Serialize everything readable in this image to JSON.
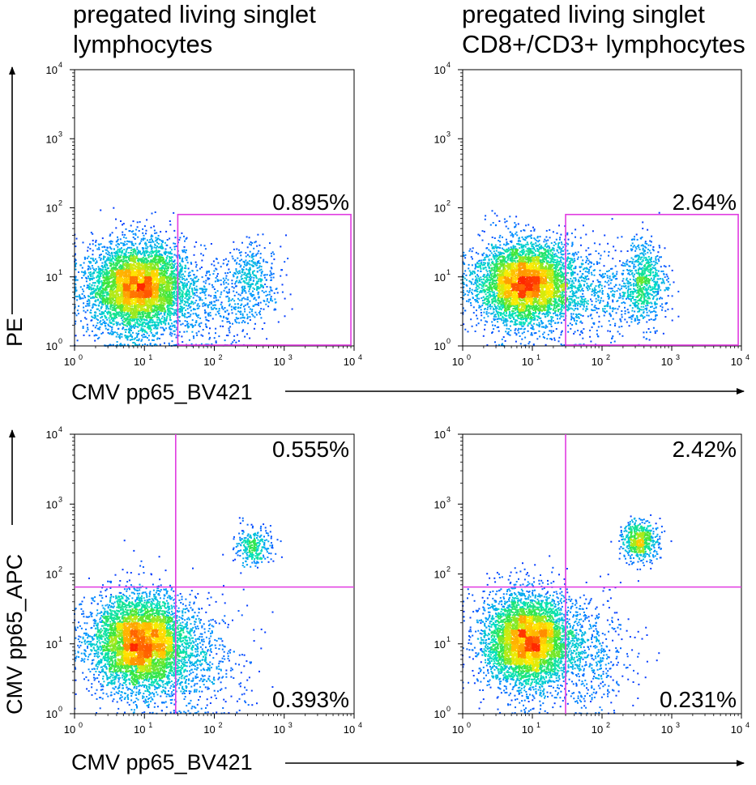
{
  "panel_titles": {
    "left": [
      "pregated living singlet",
      "lymphocytes"
    ],
    "right": [
      "pregated living singlet",
      "CD8+/CD3+ lymphocytes"
    ]
  },
  "axis_labels": {
    "top_x": "CMV pp65_BV421",
    "top_y": "PE",
    "bottom_x": "CMV pp65_BV421",
    "bottom_y": "CMV pp65_APC"
  },
  "colors": {
    "gate": "#e13be1",
    "density_low": "#0a0aff",
    "density_high": "#ff2a00"
  },
  "chart_data": [
    {
      "type": "scatter",
      "title": "pregated living singlet lymphocytes",
      "xlabel": "CMV pp65_BV421",
      "ylabel": "PE",
      "xscale": "log",
      "yscale": "log",
      "xlim": [
        1,
        10000
      ],
      "ylim": [
        1,
        10000
      ],
      "x_ticks": [
        {
          "base": "10",
          "exp": "0"
        },
        {
          "base": "10",
          "exp": "1"
        },
        {
          "base": "10",
          "exp": "2"
        },
        {
          "base": "10",
          "exp": "3"
        },
        {
          "base": "10",
          "exp": "4"
        }
      ],
      "y_ticks": [
        {
          "base": "10",
          "exp": "0"
        },
        {
          "base": "10",
          "exp": "1"
        },
        {
          "base": "10",
          "exp": "2"
        },
        {
          "base": "10",
          "exp": "3"
        },
        {
          "base": "10",
          "exp": "4"
        }
      ],
      "populations": [
        {
          "center": [
            8,
            7
          ],
          "spread": [
            0.35,
            0.33
          ],
          "weight": 0.86
        },
        {
          "center": [
            350,
            8
          ],
          "spread": [
            0.18,
            0.3
          ],
          "weight": 0.07
        },
        {
          "center": [
            80,
            4
          ],
          "spread": [
            0.35,
            0.35
          ],
          "weight": 0.07
        }
      ],
      "gates": [
        {
          "type": "rectangle",
          "x": [
            30,
            9000
          ],
          "y": [
            1,
            80
          ],
          "label": "0.895%"
        }
      ]
    },
    {
      "type": "scatter",
      "title": "pregated living singlet CD8+/CD3+ lymphocytes",
      "xlabel": "CMV pp65_BV421",
      "ylabel": "PE",
      "xscale": "log",
      "yscale": "log",
      "xlim": [
        1,
        10000
      ],
      "ylim": [
        1,
        10000
      ],
      "x_ticks": [
        {
          "base": "10",
          "exp": "0"
        },
        {
          "base": "10",
          "exp": "1"
        },
        {
          "base": "10",
          "exp": "2"
        },
        {
          "base": "10",
          "exp": "3"
        },
        {
          "base": "10",
          "exp": "4"
        }
      ],
      "y_ticks": [
        {
          "base": "10",
          "exp": "0"
        },
        {
          "base": "10",
          "exp": "1"
        },
        {
          "base": "10",
          "exp": "2"
        },
        {
          "base": "10",
          "exp": "3"
        },
        {
          "base": "10",
          "exp": "4"
        }
      ],
      "populations": [
        {
          "center": [
            8,
            8
          ],
          "spread": [
            0.35,
            0.3
          ],
          "weight": 0.8
        },
        {
          "center": [
            400,
            8
          ],
          "spread": [
            0.16,
            0.3
          ],
          "weight": 0.12
        },
        {
          "center": [
            80,
            5
          ],
          "spread": [
            0.35,
            0.35
          ],
          "weight": 0.08
        }
      ],
      "gates": [
        {
          "type": "rectangle",
          "x": [
            30,
            9000
          ],
          "y": [
            1,
            80
          ],
          "label": "2.64%"
        }
      ]
    },
    {
      "type": "scatter",
      "title": "",
      "xlabel": "CMV pp65_BV421",
      "ylabel": "CMV pp65_APC",
      "xscale": "log",
      "yscale": "log",
      "xlim": [
        1,
        10000
      ],
      "ylim": [
        1,
        10000
      ],
      "x_ticks": [
        {
          "base": "10",
          "exp": "0"
        },
        {
          "base": "10",
          "exp": "1"
        },
        {
          "base": "10",
          "exp": "2"
        },
        {
          "base": "10",
          "exp": "3"
        },
        {
          "base": "10",
          "exp": "4"
        }
      ],
      "y_ticks": [
        {
          "base": "10",
          "exp": "0"
        },
        {
          "base": "10",
          "exp": "1"
        },
        {
          "base": "10",
          "exp": "2"
        },
        {
          "base": "10",
          "exp": "3"
        },
        {
          "base": "10",
          "exp": "4"
        }
      ],
      "populations": [
        {
          "center": [
            9,
            10
          ],
          "spread": [
            0.35,
            0.35
          ],
          "weight": 0.88
        },
        {
          "center": [
            350,
            250
          ],
          "spread": [
            0.14,
            0.14
          ],
          "weight": 0.05
        },
        {
          "center": [
            60,
            5
          ],
          "spread": [
            0.35,
            0.4
          ],
          "weight": 0.07
        }
      ],
      "gates": [
        {
          "type": "quadrant",
          "x": 28,
          "y": 65,
          "labels": {
            "upper_right": "0.555%",
            "lower_right": "0.393%"
          }
        }
      ]
    },
    {
      "type": "scatter",
      "title": "",
      "xlabel": "CMV pp65_BV421",
      "ylabel": "CMV pp65_APC",
      "xscale": "log",
      "yscale": "log",
      "xlim": [
        1,
        10000
      ],
      "ylim": [
        1,
        10000
      ],
      "x_ticks": [
        {
          "base": "10",
          "exp": "0"
        },
        {
          "base": "10",
          "exp": "1"
        },
        {
          "base": "10",
          "exp": "2"
        },
        {
          "base": "10",
          "exp": "3"
        },
        {
          "base": "10",
          "exp": "4"
        }
      ],
      "y_ticks": [
        {
          "base": "10",
          "exp": "0"
        },
        {
          "base": "10",
          "exp": "1"
        },
        {
          "base": "10",
          "exp": "2"
        },
        {
          "base": "10",
          "exp": "3"
        },
        {
          "base": "10",
          "exp": "4"
        }
      ],
      "populations": [
        {
          "center": [
            9,
            11
          ],
          "spread": [
            0.33,
            0.33
          ],
          "weight": 0.83
        },
        {
          "center": [
            350,
            300
          ],
          "spread": [
            0.14,
            0.14
          ],
          "weight": 0.1
        },
        {
          "center": [
            70,
            6
          ],
          "spread": [
            0.35,
            0.4
          ],
          "weight": 0.07
        }
      ],
      "gates": [
        {
          "type": "quadrant",
          "x": 30,
          "y": 65,
          "labels": {
            "upper_right": "2.42%",
            "lower_right": "0.231%"
          }
        }
      ]
    }
  ]
}
